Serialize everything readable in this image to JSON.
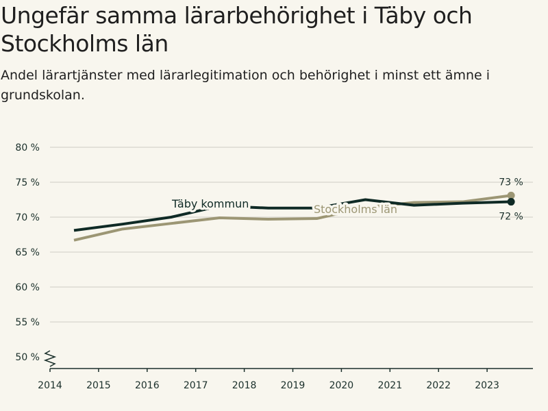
{
  "header": {
    "title": "Ungefär samma lärarbehörighet i Täby och Stockholms län",
    "subtitle": "Andel lärartjänster med lärarlegitimation och behörighet i minst ett ämne i grundskolan."
  },
  "chart_data": {
    "type": "line",
    "title": "Ungefär samma lärarbehörighet i Täby och Stockholms län",
    "subtitle": "Andel lärartjänster med lärarlegitimation och behörighet i minst ett ämne i grundskolan.",
    "x": [
      "2014",
      "2015",
      "2016",
      "2017",
      "2018",
      "2019",
      "2020",
      "2021",
      "2022",
      "2023"
    ],
    "ylim": [
      50,
      80
    ],
    "yticks": [
      50,
      55,
      60,
      65,
      70,
      75,
      80
    ],
    "ytick_labels": [
      "50 %",
      "55 %",
      "60 %",
      "65 %",
      "70 %",
      "75 %",
      "80 %"
    ],
    "xlabel": "",
    "ylabel": "",
    "grid": true,
    "series": [
      {
        "name": "Täby kommun",
        "color": "#0f2a25",
        "values": [
          68.1,
          69.0,
          70.0,
          71.6,
          71.3,
          71.3,
          72.5,
          71.7,
          72.0,
          72.2
        ],
        "end_label": "72 %"
      },
      {
        "name": "Stockholms län",
        "color": "#9c9674",
        "values": [
          66.7,
          68.3,
          69.1,
          69.9,
          69.7,
          69.8,
          71.4,
          72.1,
          72.2,
          73.1
        ],
        "end_label": "73 %"
      }
    ]
  }
}
